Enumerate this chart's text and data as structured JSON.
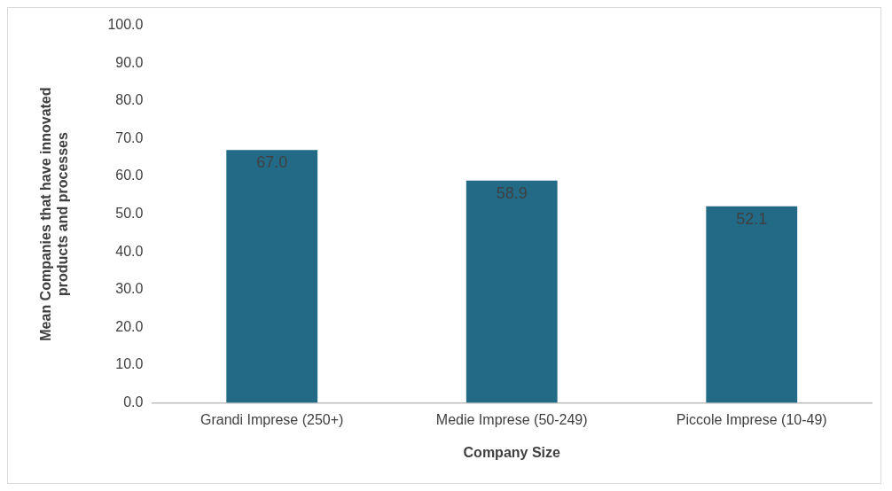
{
  "chart_data": {
    "type": "bar",
    "xlabel": "Company Size",
    "ylabel": "Mean Companies that have innovated products and processes",
    "categories": [
      "Grandi Imprese (250+)",
      "Medie Imprese (50-249)",
      "Piccole Imprese (10-49)"
    ],
    "values": [
      67.0,
      58.9,
      52.1
    ],
    "color": "#236a87",
    "value_labels": [
      "67.0",
      "58.9",
      "52.1"
    ],
    "ylim": [
      0,
      100
    ],
    "yticks": [
      {
        "value": 0,
        "label": "0.0"
      },
      {
        "value": 10,
        "label": "10.0"
      },
      {
        "value": 20,
        "label": "20.0"
      },
      {
        "value": 30,
        "label": "30.0"
      },
      {
        "value": 40,
        "label": "40.0"
      },
      {
        "value": 50,
        "label": "50.0"
      },
      {
        "value": 60,
        "label": "60.0"
      },
      {
        "value": 70,
        "label": "70.0"
      },
      {
        "value": 80,
        "label": "80.0"
      },
      {
        "value": 90,
        "label": "90.0"
      },
      {
        "value": 100,
        "label": "100.0"
      }
    ],
    "grid": false,
    "legend": false
  }
}
